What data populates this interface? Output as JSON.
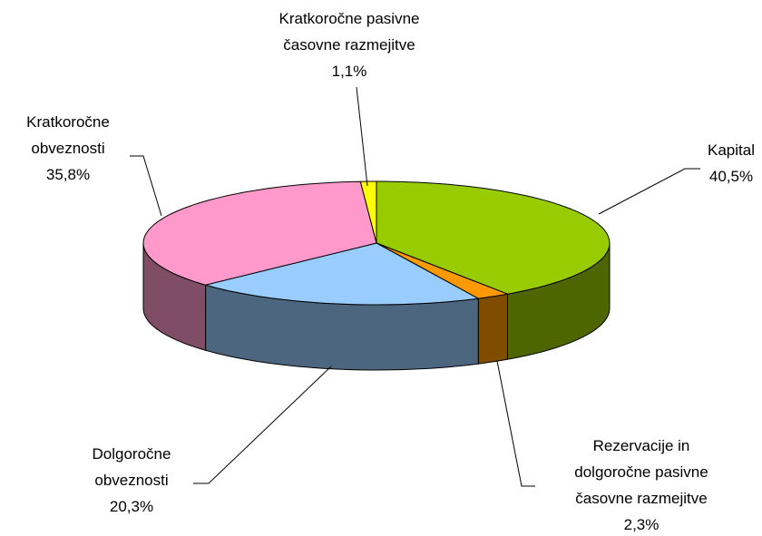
{
  "chart_data": {
    "type": "pie3d",
    "categories": [
      "Kapital",
      "Rezervacije in dolgoročne pasivne časovne razmejitve",
      "Dolgoročne obveznosti",
      "Kratkoročne obveznosti",
      "Kratkoročne pasivne časovne razmejitve"
    ],
    "values": [
      40.5,
      2.3,
      20.3,
      35.8,
      1.1
    ],
    "value_labels": [
      "40,5%",
      "2,3%",
      "20,3%",
      "35,8%",
      "1,1%"
    ],
    "colors": [
      "#99cc00",
      "#ff9900",
      "#99ccff",
      "#ff99cc",
      "#ffff00"
    ]
  }
}
